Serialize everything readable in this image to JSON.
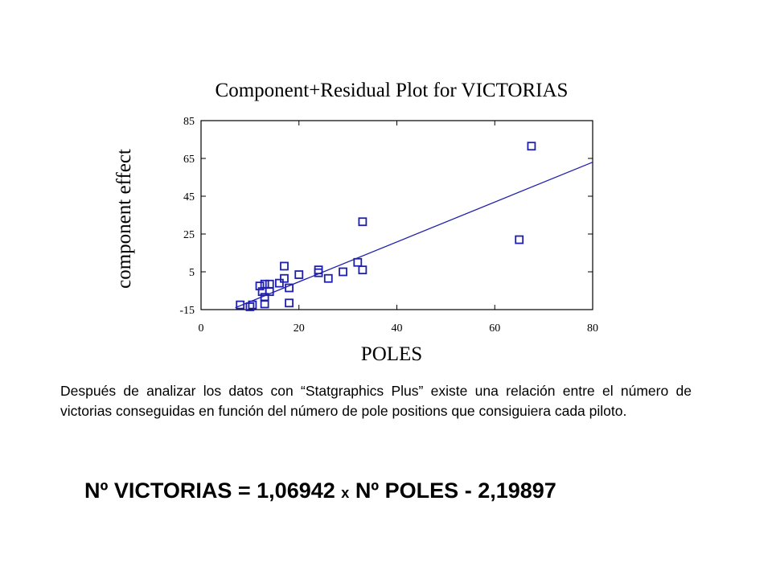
{
  "chart_data": {
    "type": "scatter",
    "title": "Component+Residual Plot for VICTORIAS",
    "xlabel": "POLES",
    "ylabel": "component effect",
    "xlim": [
      0,
      80
    ],
    "ylim": [
      -15,
      85
    ],
    "x_ticks": [
      "0",
      "20",
      "40",
      "60",
      "80"
    ],
    "y_ticks": [
      "85",
      "65",
      "45",
      "25",
      "5",
      "-15"
    ],
    "grid": false,
    "points": [
      {
        "x": 8,
        "y": -12.5
      },
      {
        "x": 10,
        "y": -13.5
      },
      {
        "x": 10.5,
        "y": -12.5
      },
      {
        "x": 12,
        "y": -2.5
      },
      {
        "x": 12.5,
        "y": -5.5
      },
      {
        "x": 13,
        "y": -1.5
      },
      {
        "x": 13,
        "y": -8.5
      },
      {
        "x": 13,
        "y": -12
      },
      {
        "x": 14,
        "y": -1.5
      },
      {
        "x": 14,
        "y": -5.5
      },
      {
        "x": 16,
        "y": -1
      },
      {
        "x": 17,
        "y": 8
      },
      {
        "x": 17,
        "y": 1.5
      },
      {
        "x": 18,
        "y": -3.5
      },
      {
        "x": 18,
        "y": -11.5
      },
      {
        "x": 20,
        "y": 3.5
      },
      {
        "x": 24,
        "y": 6
      },
      {
        "x": 24,
        "y": 4.5
      },
      {
        "x": 26,
        "y": 1.5
      },
      {
        "x": 29,
        "y": 5
      },
      {
        "x": 32,
        "y": 10
      },
      {
        "x": 33,
        "y": 6
      },
      {
        "x": 33,
        "y": 31.5
      },
      {
        "x": 65,
        "y": 22
      },
      {
        "x": 67.5,
        "y": 71.5
      }
    ],
    "fit_line": {
      "x": [
        7,
        80
      ],
      "y": [
        -14,
        63
      ]
    }
  },
  "description": "Después de analizar los datos con “Statgraphics Plus” existe una relación entre el número de victorias conseguidas en función del número de pole positions que consiguiera cada piloto.",
  "equation": {
    "left": "Nº VICTORIAS = 1,06942",
    "operator": "x",
    "right": "Nº POLES - 2,19897"
  },
  "colors": {
    "series": "#1f1faf",
    "axis": "#000000"
  }
}
